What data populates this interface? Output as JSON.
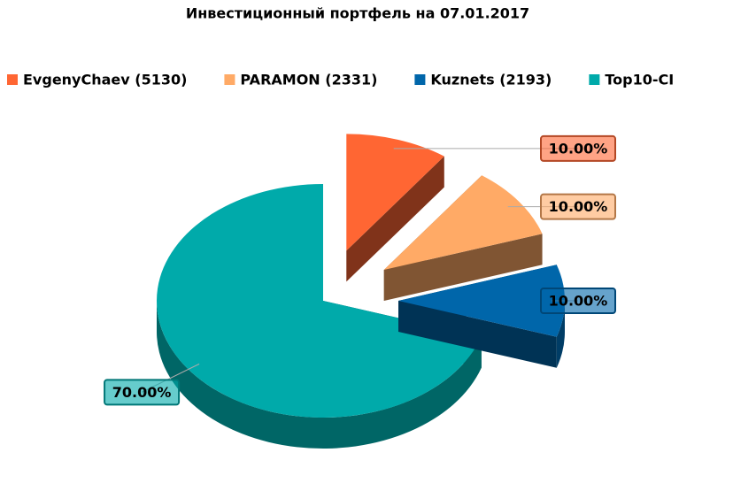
{
  "chart_data": {
    "type": "pie3d",
    "title": "Инвестиционный портфель на 07.01.2017",
    "categories": [
      "EvgenyChaev (5130)",
      "PARAMON (2331)",
      "Kuznets (2193)",
      "Top10-CI"
    ],
    "values": [
      10,
      10,
      10,
      70
    ],
    "value_labels": [
      "10.00%",
      "10.00%",
      "10.00%",
      "70.00%"
    ],
    "colors": [
      "#ff6633",
      "#ffaa66",
      "#0066aa",
      "#00aaaa"
    ],
    "legend": "top"
  }
}
